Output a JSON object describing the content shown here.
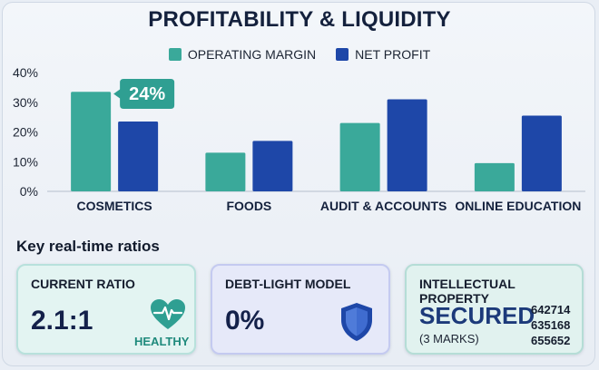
{
  "title": "PROFITABILITY & LIQUIDITY",
  "colors": {
    "operating_margin": "#3aa99a",
    "net_profit": "#1e47a8",
    "callout": "#2f9f92"
  },
  "chart_data": {
    "type": "bar",
    "categories": [
      "COSMETICS",
      "FOODS",
      "AUDIT & ACCOUNTS",
      "ONLINE EDUCATION"
    ],
    "series": [
      {
        "name": "OPERATING MARGIN",
        "values": [
          33.5,
          13,
          23,
          9.5
        ]
      },
      {
        "name": "NET PROFIT",
        "values": [
          23.5,
          17,
          31,
          25.5
        ]
      }
    ],
    "yticks": [
      "0%",
      "10%",
      "20%",
      "30%",
      "40%"
    ],
    "ylim": [
      0,
      40
    ],
    "grid": false,
    "legend": "top-center",
    "annotation": {
      "text": "24%",
      "category": "COSMETICS"
    }
  },
  "ratios": {
    "heading": "Key real-time ratios",
    "current_ratio": {
      "title": "CURRENT RATIO",
      "value": "2.1:1",
      "status": "HEALTHY",
      "icon": "heart-pulse-icon"
    },
    "debt": {
      "title": "DEBT-LIGHT MODEL",
      "value": "0%",
      "icon": "shield-icon"
    },
    "ip": {
      "title": "INTELLECTUAL PROPERTY",
      "value": "SECURED",
      "note": "(3 MARKS)",
      "numbers": [
        "642714",
        "635168",
        "655652"
      ]
    }
  }
}
